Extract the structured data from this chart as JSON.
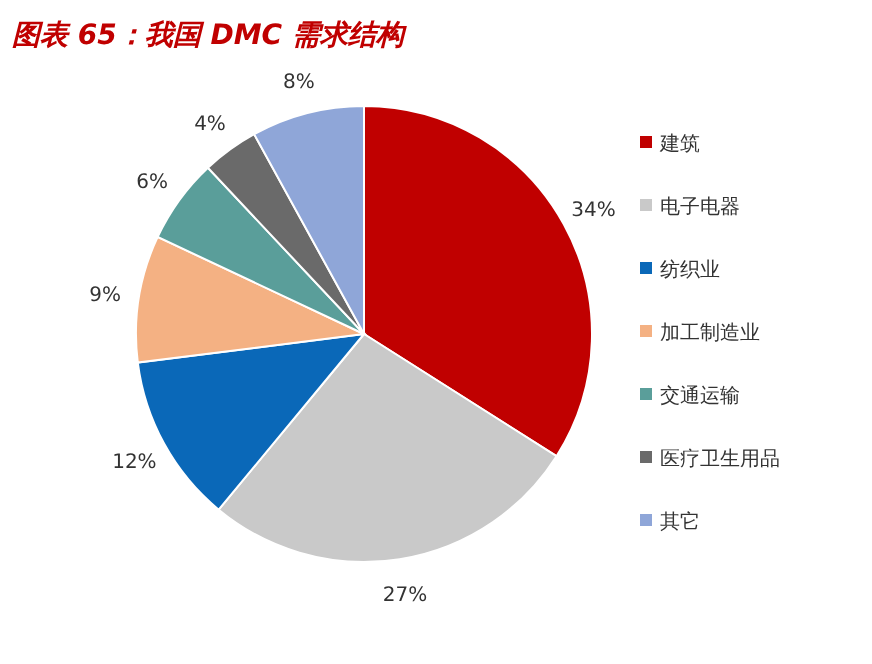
{
  "chart_data": {
    "type": "pie",
    "title": "图表 65：我国 DMC 需求结构",
    "categories": [
      "建筑",
      "电子电器",
      "纺织业",
      "加工制造业",
      "交通运输",
      "医疗卫生用品",
      "其它"
    ],
    "values": [
      34,
      27,
      12,
      9,
      6,
      4,
      8
    ],
    "value_labels": [
      "34%",
      "27%",
      "12%",
      "9%",
      "6%",
      "4%",
      "8%"
    ],
    "colors": [
      "#c00000",
      "#c9c9c9",
      "#0a68b8",
      "#f4b183",
      "#5a9e9a",
      "#6a6a6a",
      "#8fa6d8"
    ],
    "legend": "right"
  }
}
